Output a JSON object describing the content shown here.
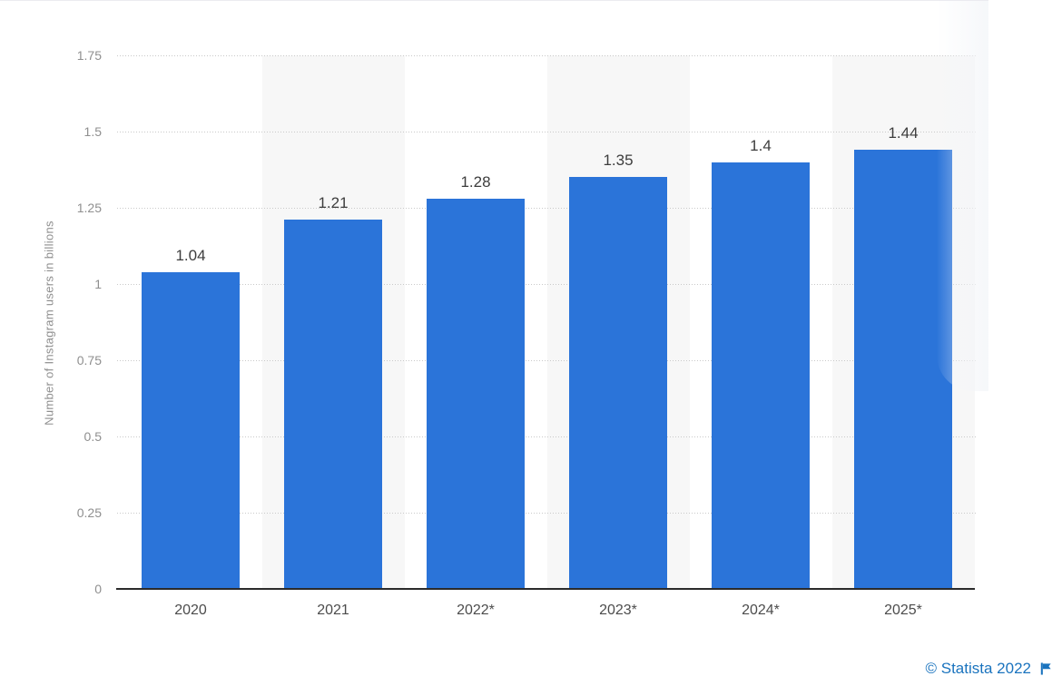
{
  "chart_data": {
    "type": "bar",
    "title": "",
    "categories": [
      "2020",
      "2021",
      "2022*",
      "2023*",
      "2024*",
      "2025*"
    ],
    "values": [
      1.04,
      1.21,
      1.28,
      1.35,
      1.4,
      1.44
    ],
    "value_labels": [
      "1.04",
      "1.21",
      "1.28",
      "1.35",
      "1.4",
      "1.44"
    ],
    "ylabel": "Number of Instagram users in billions",
    "xlabel": "",
    "ylim": [
      0,
      1.75
    ],
    "yticks": [
      {
        "value": 0,
        "label": "0"
      },
      {
        "value": 0.25,
        "label": "0.25"
      },
      {
        "value": 0.5,
        "label": "0.5"
      },
      {
        "value": 0.75,
        "label": "0.75"
      },
      {
        "value": 1,
        "label": "1"
      },
      {
        "value": 1.25,
        "label": "1.25"
      },
      {
        "value": 1.5,
        "label": "1.5"
      },
      {
        "value": 1.75,
        "label": "1.75"
      }
    ],
    "grid": "horizontal-dotted",
    "legend_position": "none",
    "colors": {
      "bar": "#2b74d9",
      "band": "#f7f7f7",
      "gridline": "#c9c9c9",
      "axis_line": "#2b2b2b",
      "tick_label": "#8f8f8f",
      "value_label": "#3d3d3d",
      "category_label": "#4c4c4c"
    }
  },
  "footer": {
    "attribution": "© Statista 2022",
    "icon": "flag",
    "link_color": "#1a73be"
  }
}
